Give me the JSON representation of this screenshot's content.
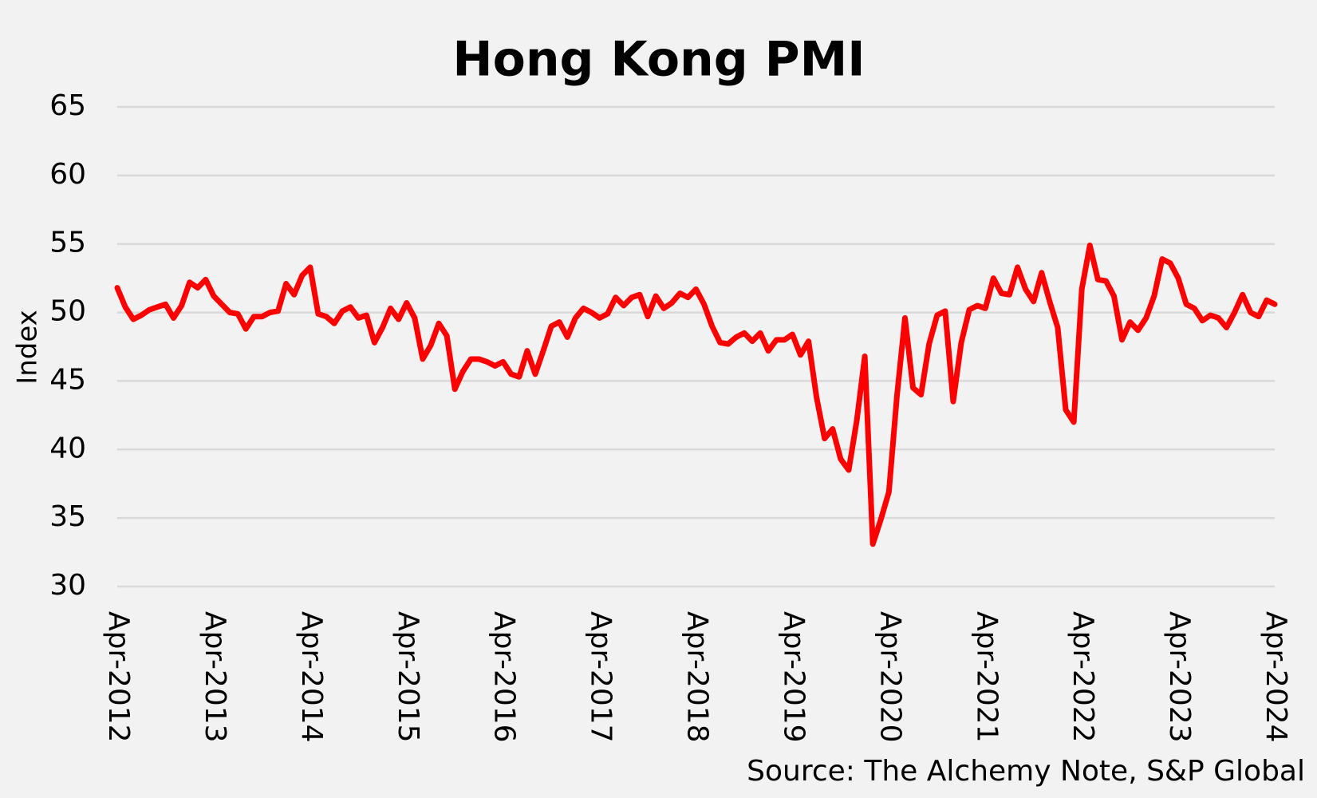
{
  "chart_data": {
    "type": "line",
    "title": "Hong Kong PMI",
    "y_label": "Index",
    "source": "Source: The Alchemy Note, S&P Global",
    "categories": [
      "Apr-2012",
      null,
      null,
      null,
      null,
      null,
      null,
      null,
      null,
      null,
      null,
      null,
      "Apr-2013",
      null,
      null,
      null,
      null,
      null,
      null,
      null,
      null,
      null,
      null,
      null,
      "Apr-2014",
      null,
      null,
      null,
      null,
      null,
      null,
      null,
      null,
      null,
      null,
      null,
      "Apr-2015",
      null,
      null,
      null,
      null,
      null,
      null,
      null,
      null,
      null,
      null,
      null,
      "Apr-2016",
      null,
      null,
      null,
      null,
      null,
      null,
      null,
      null,
      null,
      null,
      null,
      "Apr-2017",
      null,
      null,
      null,
      null,
      null,
      null,
      null,
      null,
      null,
      null,
      null,
      "Apr-2018",
      null,
      null,
      null,
      null,
      null,
      null,
      null,
      null,
      null,
      null,
      null,
      "Apr-2019",
      null,
      null,
      null,
      null,
      null,
      null,
      null,
      null,
      null,
      null,
      null,
      "Apr-2020",
      null,
      null,
      null,
      null,
      null,
      null,
      null,
      null,
      null,
      null,
      null,
      "Apr-2021",
      null,
      null,
      null,
      null,
      null,
      null,
      null,
      null,
      null,
      null,
      null,
      "Apr-2022",
      null,
      null,
      null,
      null,
      null,
      null,
      null,
      null,
      null,
      null,
      null,
      "Apr-2023",
      null,
      null,
      null,
      null,
      null,
      null,
      null,
      null,
      null,
      null,
      null,
      "Apr-2024"
    ],
    "values": [
      51.8,
      50.4,
      49.5,
      49.8,
      50.2,
      50.4,
      50.6,
      49.6,
      50.5,
      52.2,
      51.8,
      52.4,
      51.2,
      50.6,
      50.0,
      49.9,
      48.8,
      49.7,
      49.7,
      50.0,
      50.1,
      52.1,
      51.3,
      52.7,
      53.3,
      49.9,
      49.7,
      49.2,
      50.1,
      50.4,
      49.6,
      49.8,
      47.8,
      48.9,
      50.3,
      49.5,
      50.7,
      49.6,
      46.6,
      47.6,
      49.2,
      48.3,
      44.4,
      45.7,
      46.6,
      46.6,
      46.4,
      46.1,
      46.4,
      45.5,
      45.3,
      47.2,
      45.5,
      47.2,
      49.0,
      49.3,
      48.2,
      49.6,
      50.3,
      50.0,
      49.6,
      49.9,
      51.1,
      50.5,
      51.1,
      51.3,
      49.7,
      51.2,
      50.3,
      50.7,
      51.4,
      51.1,
      51.7,
      50.6,
      49.0,
      47.8,
      47.7,
      48.2,
      48.5,
      47.9,
      48.5,
      47.2,
      48.0,
      48.0,
      48.4,
      46.9,
      47.9,
      43.8,
      40.8,
      41.5,
      39.3,
      38.5,
      42.1,
      46.8,
      33.1,
      34.9,
      36.9,
      43.9,
      49.6,
      44.5,
      44.0,
      47.7,
      49.8,
      50.1,
      43.5,
      47.8,
      50.2,
      50.5,
      50.3,
      52.5,
      51.4,
      51.3,
      53.3,
      51.7,
      50.8,
      52.9,
      50.8,
      48.9,
      42.9,
      42.0,
      51.7,
      54.9,
      52.4,
      52.3,
      51.2,
      48.0,
      49.3,
      48.7,
      49.6,
      51.2,
      53.9,
      53.6,
      52.5,
      50.6,
      50.3,
      49.4,
      49.8,
      49.6,
      48.9,
      50.0,
      51.3,
      50.0,
      49.7,
      50.9,
      50.6
    ],
    "color": "#ff0000",
    "ylim": [
      30,
      65
    ],
    "yticks": [
      30,
      35,
      40,
      45,
      50,
      55,
      60,
      65
    ],
    "grid": true
  }
}
